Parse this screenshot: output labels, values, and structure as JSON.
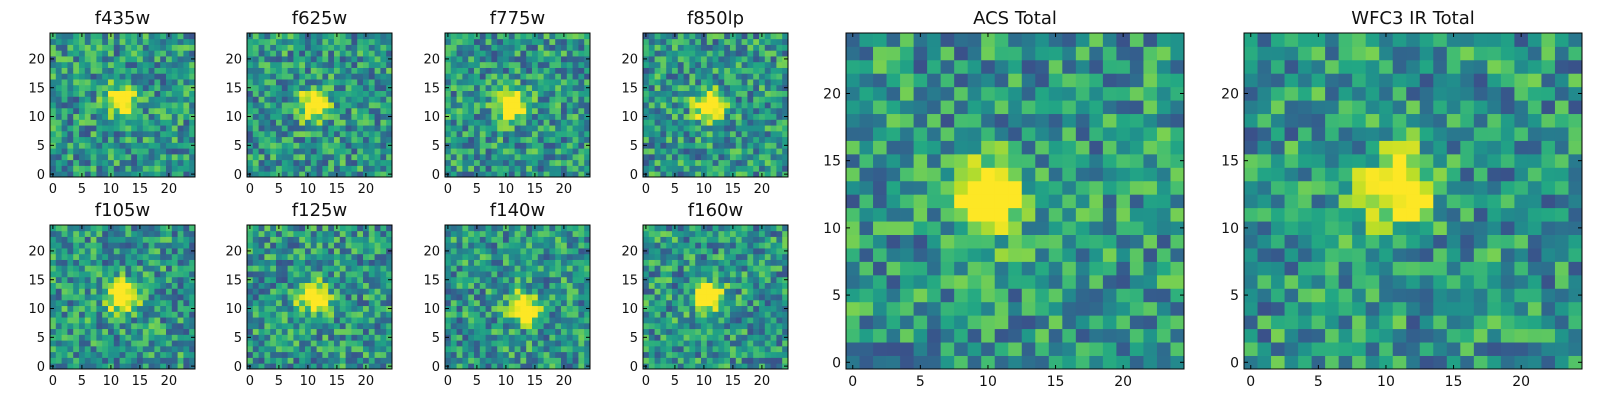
{
  "figure": {
    "description_colormap": "viridis"
  },
  "colors": {
    "low": "#440154",
    "mid": "#21918c",
    "high": "#fde725"
  },
  "chart_data": [
    {
      "type": "heatmap",
      "title": "f435w",
      "grid_size": 25,
      "xlim": [
        0,
        24
      ],
      "ylim": [
        0,
        24
      ],
      "x_ticks": [
        0,
        5,
        10,
        15,
        20
      ],
      "y_ticks": [
        0,
        5,
        10,
        15,
        20
      ],
      "peak": [
        12,
        13
      ],
      "peak_value": 0.85,
      "seed": 11
    },
    {
      "type": "heatmap",
      "title": "f625w",
      "grid_size": 25,
      "xlim": [
        0,
        24
      ],
      "ylim": [
        0,
        24
      ],
      "x_ticks": [
        0,
        5,
        10,
        15,
        20
      ],
      "y_ticks": [
        0,
        5,
        10,
        15,
        20
      ],
      "peak": [
        11,
        12
      ],
      "peak_value": 0.9,
      "seed": 23
    },
    {
      "type": "heatmap",
      "title": "f775w",
      "grid_size": 25,
      "xlim": [
        0,
        24
      ],
      "ylim": [
        0,
        24
      ],
      "x_ticks": [
        0,
        5,
        10,
        15,
        20
      ],
      "y_ticks": [
        0,
        5,
        10,
        15,
        20
      ],
      "peak": [
        11,
        12
      ],
      "peak_value": 0.95,
      "seed": 37
    },
    {
      "type": "heatmap",
      "title": "f850lp",
      "grid_size": 25,
      "xlim": [
        0,
        24
      ],
      "ylim": [
        0,
        24
      ],
      "x_ticks": [
        0,
        5,
        10,
        15,
        20
      ],
      "y_ticks": [
        0,
        5,
        10,
        15,
        20
      ],
      "peak": [
        11,
        12
      ],
      "peak_value": 0.95,
      "seed": 41
    },
    {
      "type": "heatmap",
      "title": "f105w",
      "grid_size": 25,
      "xlim": [
        0,
        24
      ],
      "ylim": [
        0,
        24
      ],
      "x_ticks": [
        0,
        5,
        10,
        15,
        20
      ],
      "y_ticks": [
        0,
        5,
        10,
        15,
        20
      ],
      "peak": [
        12,
        12
      ],
      "peak_value": 0.95,
      "seed": 53
    },
    {
      "type": "heatmap",
      "title": "f125w",
      "grid_size": 25,
      "xlim": [
        0,
        24
      ],
      "ylim": [
        0,
        24
      ],
      "x_ticks": [
        0,
        5,
        10,
        15,
        20
      ],
      "y_ticks": [
        0,
        5,
        10,
        15,
        20
      ],
      "peak": [
        11,
        12
      ],
      "peak_value": 0.95,
      "seed": 67
    },
    {
      "type": "heatmap",
      "title": "f140w",
      "grid_size": 25,
      "xlim": [
        0,
        24
      ],
      "ylim": [
        0,
        24
      ],
      "x_ticks": [
        0,
        5,
        10,
        15,
        20
      ],
      "y_ticks": [
        0,
        5,
        10,
        15,
        20
      ],
      "peak": [
        13,
        10
      ],
      "peak_value": 0.9,
      "seed": 79
    },
    {
      "type": "heatmap",
      "title": "f160w",
      "grid_size": 25,
      "xlim": [
        0,
        24
      ],
      "ylim": [
        0,
        24
      ],
      "x_ticks": [
        0,
        5,
        10,
        15,
        20
      ],
      "y_ticks": [
        0,
        5,
        10,
        15,
        20
      ],
      "peak": [
        11,
        12
      ],
      "peak_value": 0.95,
      "seed": 83
    },
    {
      "type": "heatmap",
      "title": "ACS Total",
      "grid_size": 25,
      "xlim": [
        0,
        24
      ],
      "ylim": [
        0,
        24
      ],
      "x_ticks": [
        0,
        5,
        10,
        15,
        20
      ],
      "y_ticks": [
        0,
        5,
        10,
        15,
        20
      ],
      "peak": [
        10,
        12
      ],
      "peak_value": 1.0,
      "seed": 97
    },
    {
      "type": "heatmap",
      "title": "WFC3 IR Total",
      "grid_size": 25,
      "xlim": [
        0,
        24
      ],
      "ylim": [
        0,
        24
      ],
      "x_ticks": [
        0,
        5,
        10,
        15,
        20
      ],
      "y_ticks": [
        0,
        5,
        10,
        15,
        20
      ],
      "peak": [
        11,
        13
      ],
      "peak_value": 0.95,
      "seed": 101
    }
  ]
}
